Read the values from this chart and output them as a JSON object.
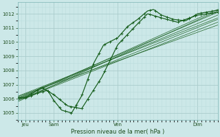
{
  "xlabel": "Pression niveau de la mer( hPa )",
  "bg_color": "#cce8e8",
  "plot_bg_color": "#cce8e8",
  "grid_color_major": "#aacccc",
  "grid_color_minor": "#bbdddd",
  "line_color": "#1a6020",
  "ylim": [
    1004.5,
    1012.8
  ],
  "xlim": [
    0,
    100
  ],
  "yticks": [
    1005,
    1006,
    1007,
    1008,
    1009,
    1010,
    1011,
    1012
  ],
  "xtick_positions": [
    4,
    18,
    50,
    90
  ],
  "xtick_labels": [
    "Jeu",
    "Sam",
    "Ven",
    "Dim"
  ],
  "vline_positions": [
    4,
    18,
    50,
    90
  ],
  "straight_lines_start": [
    1006.2,
    1006.1,
    1006.25,
    1006.15,
    1006.3,
    1006.35,
    1006.05,
    1006.4
  ],
  "straight_lines_end": [
    1012.3,
    1011.4,
    1011.9,
    1011.6,
    1012.1,
    1011.2,
    1012.2,
    1011.7
  ],
  "main_wx": [
    4,
    10,
    15,
    18,
    22,
    27,
    32,
    38,
    43,
    50,
    55,
    60,
    65,
    68,
    72,
    78,
    84,
    90,
    100
  ],
  "main_wy": [
    1006.05,
    1006.4,
    1006.6,
    1005.9,
    1005.2,
    1005.0,
    1006.2,
    1008.5,
    1009.8,
    1010.3,
    1011.1,
    1011.6,
    1012.2,
    1012.3,
    1011.9,
    1011.6,
    1011.5,
    1012.0,
    1012.25
  ],
  "line2_wx": [
    4,
    12,
    18,
    25,
    32,
    42,
    50,
    58,
    65,
    72,
    80,
    90,
    100
  ],
  "line2_wy": [
    1006.1,
    1006.8,
    1006.3,
    1005.5,
    1005.3,
    1007.5,
    1009.8,
    1011.0,
    1012.0,
    1011.7,
    1011.4,
    1011.9,
    1012.1
  ]
}
